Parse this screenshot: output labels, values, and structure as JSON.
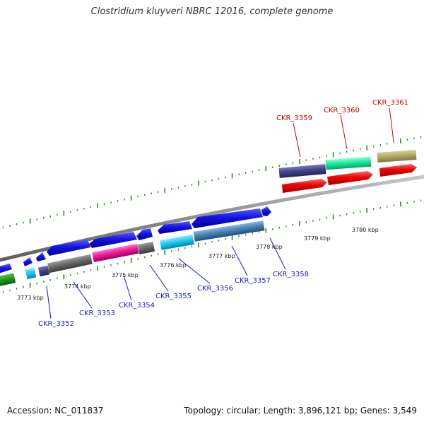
{
  "title": "Clostridium kluyveri NBRC 12016, complete genome",
  "footer": {
    "accession": "Accession: NC_011837",
    "stats": "Topology: circular; Length: 3,896,121 bp; Genes: 3,549"
  },
  "kbp_labels": [
    "3773 kbp",
    "3774 kbp",
    "3775 kbp",
    "3776 kbp",
    "3777 kbp",
    "3778 kbp",
    "3779 kbp",
    "3780 kbp"
  ],
  "genes_minus": [
    "CKR_3352",
    "CKR_3353",
    "CKR_3354",
    "CKR_3355",
    "CKR_3356",
    "CKR_3357",
    "CKR_3358"
  ],
  "genes_plus": [
    "CKR_3359",
    "CKR_3360",
    "CKR_3361"
  ],
  "colors": {
    "minus_label": "#1a1ab4",
    "plus_label": "#cc0000",
    "tick": "#2e8b1e",
    "backbone": "#8c8c8c"
  }
}
